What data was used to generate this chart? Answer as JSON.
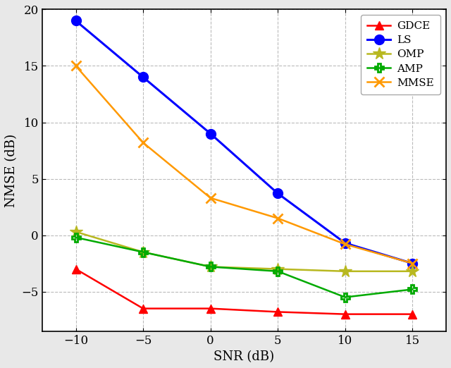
{
  "snr": [
    -10,
    -5,
    0,
    5,
    10,
    15
  ],
  "GDCE": [
    -3.0,
    -6.5,
    -6.5,
    -6.8,
    -7.0,
    -7.0
  ],
  "LS": [
    19.0,
    14.0,
    9.0,
    3.7,
    -0.7,
    -2.5
  ],
  "OMP": [
    0.3,
    -1.5,
    -2.8,
    -3.0,
    -3.2,
    -3.2
  ],
  "AMP": [
    -0.2,
    -1.5,
    -2.8,
    -3.2,
    -5.5,
    -4.8
  ],
  "MMSE": [
    15.0,
    8.2,
    3.3,
    1.5,
    -0.8,
    -2.5
  ],
  "colors": {
    "GDCE": "#ff0000",
    "LS": "#0000ff",
    "OMP": "#b8b820",
    "AMP": "#00aa00",
    "MMSE": "#ff9900"
  },
  "markers": {
    "GDCE": "^",
    "LS": "o",
    "OMP": "*",
    "AMP": "P",
    "MMSE": "x"
  },
  "series_order": [
    "GDCE",
    "LS",
    "OMP",
    "AMP",
    "MMSE"
  ],
  "title": "",
  "xlabel": "SNR (dB)",
  "ylabel": "NMSE (dB)",
  "ylim": [
    -8.5,
    20
  ],
  "xlim": [
    -12.5,
    17.5
  ],
  "yticks": [
    -5,
    0,
    5,
    10,
    15,
    20
  ],
  "xticks": [
    -10,
    -5,
    0,
    5,
    10,
    15
  ],
  "plot_bg": "#ffffff",
  "fig_bg": "#e8e8e8"
}
